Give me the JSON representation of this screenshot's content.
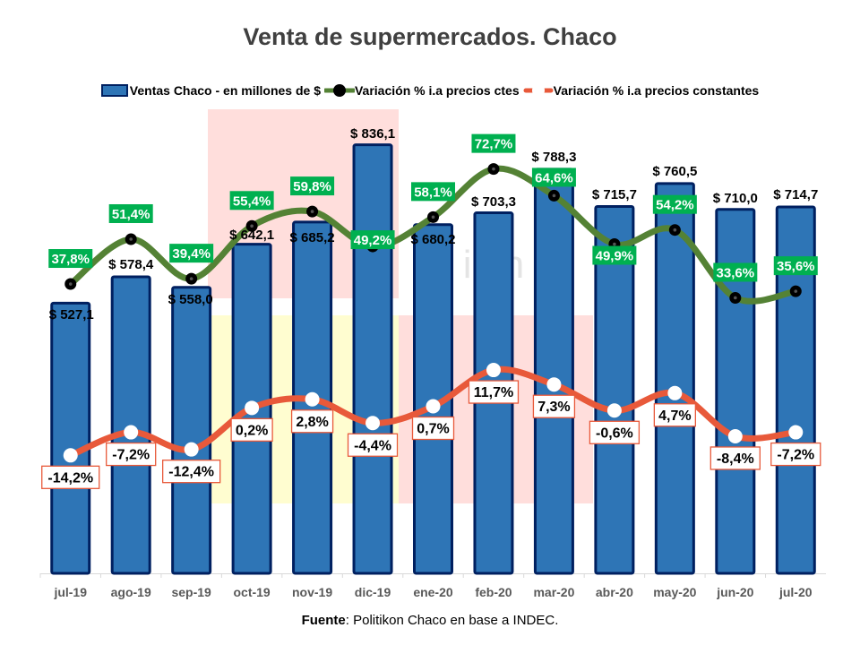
{
  "chart_data": {
    "type": "bar+line",
    "title": "Venta de supermercados. Chaco",
    "categories": [
      "jul-19",
      "ago-19",
      "sep-19",
      "oct-19",
      "nov-19",
      "dic-19",
      "ene-20",
      "feb-20",
      "mar-20",
      "abr-20",
      "may-20",
      "jun-20",
      "jul-20"
    ],
    "series": [
      {
        "name": "Ventas Chaco - en millones de $",
        "type": "bar",
        "axis": "primary",
        "values": [
          527.1,
          578.4,
          558.0,
          642.1,
          685.2,
          836.1,
          680.2,
          703.3,
          788.3,
          715.7,
          760.5,
          710.0,
          714.7
        ],
        "labels": [
          "$ 527,1",
          "$ 578,4",
          "$ 558,0",
          "$ 642,1",
          "$ 685,2",
          "$ 836,1",
          "$ 680,2",
          "$ 703,3",
          "$ 788,3",
          "$ 715,7",
          "$ 760,5",
          "$ 710,0",
          "$ 714,7"
        ],
        "color": "#2E75B6",
        "border": "#002060"
      },
      {
        "name": "Variación % i.a precios ctes",
        "type": "line",
        "axis": "secondary",
        "values": [
          37.8,
          51.4,
          39.4,
          55.4,
          59.8,
          49.2,
          58.1,
          72.7,
          64.6,
          49.9,
          54.2,
          33.6,
          35.6
        ],
        "labels": [
          "37,8%",
          "51,4%",
          "39,4%",
          "55,4%",
          "59,8%",
          "49,2%",
          "58,1%",
          "72,7%",
          "64,6%",
          "49,9%",
          "54,2%",
          "33,6%",
          "35,6%"
        ],
        "color": "#548235",
        "marker": "#000000",
        "label_bg": "#00B050"
      },
      {
        "name": "Variación % i.a precios constantes",
        "type": "line",
        "axis": "secondary",
        "values": [
          -14.2,
          -7.2,
          -12.4,
          0.2,
          2.8,
          -4.4,
          0.7,
          11.7,
          7.3,
          -0.6,
          4.7,
          -8.4,
          -7.2
        ],
        "labels": [
          "-14,2%",
          "-7,2%",
          "-12,4%",
          "0,2%",
          "2,8%",
          "-4,4%",
          "0,7%",
          "11,7%",
          "7,3%",
          "-0,6%",
          "4,7%",
          "-8,4%",
          "-7,2%"
        ],
        "color": "#E8593A",
        "marker": "#FFFFFF"
      }
    ],
    "ylim": [
      0,
      900
    ],
    "y2lim": [
      -50,
      90
    ],
    "grid": false,
    "legend": "top"
  },
  "source": {
    "bold": "Fuente",
    "text": ": Politikon Chaco en base a INDEC."
  }
}
